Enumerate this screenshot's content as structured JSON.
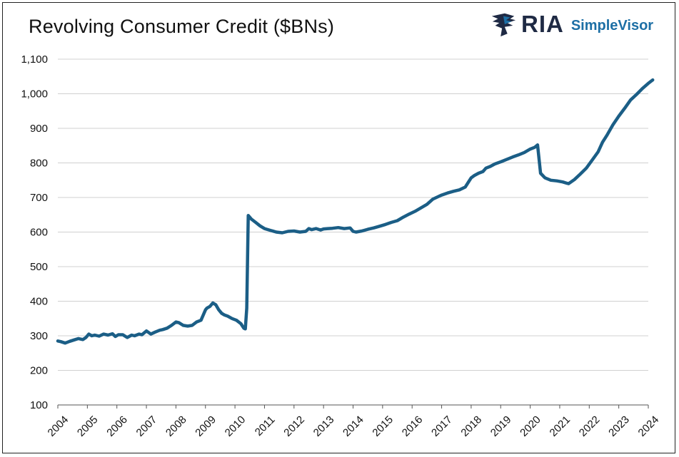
{
  "chart_data": {
    "type": "line",
    "title": "Revolving Consumer Credit ($BNs)",
    "xlabel": "",
    "ylabel": "",
    "ylim": [
      100,
      1100
    ],
    "yticks": [
      100,
      200,
      300,
      400,
      500,
      600,
      700,
      800,
      900,
      1000,
      1100
    ],
    "ytick_labels": [
      "100",
      "200",
      "300",
      "400",
      "500",
      "600",
      "700",
      "800",
      "900",
      "1,000",
      "1,100"
    ],
    "xlim": [
      2004.0,
      2024.0
    ],
    "xticks": [
      2004,
      2005,
      2006,
      2007,
      2008,
      2009,
      2010,
      2011,
      2012,
      2013,
      2014,
      2015,
      2016,
      2017,
      2018,
      2019,
      2020,
      2021,
      2022,
      2023,
      2024
    ],
    "xtick_labels": [
      "2004",
      "2005",
      "2006",
      "2007",
      "2008",
      "2009",
      "2010",
      "2011",
      "2012",
      "2013",
      "2014",
      "2015",
      "2016",
      "2017",
      "2018",
      "2019",
      "2020",
      "2021",
      "2022",
      "2023",
      "2024"
    ],
    "grid": true,
    "legend": "none",
    "series": [
      {
        "color": "#1b5e86",
        "x": [
          2004.0,
          2004.1,
          2004.25,
          2004.4,
          2004.55,
          2004.7,
          2004.85,
          2004.95,
          2005.05,
          2005.15,
          2005.25,
          2005.4,
          2005.55,
          2005.7,
          2005.85,
          2005.95,
          2006.05,
          2006.2,
          2006.35,
          2006.5,
          2006.6,
          2006.75,
          2006.85,
          2007.0,
          2007.15,
          2007.3,
          2007.45,
          2007.55,
          2007.7,
          2007.85,
          2008.0,
          2008.1,
          2008.25,
          2008.4,
          2008.55,
          2008.7,
          2008.85,
          2009.0,
          2009.05,
          2009.15,
          2009.25,
          2009.35,
          2009.45,
          2009.55,
          2009.65,
          2009.75,
          2009.9,
          2010.05,
          2010.2,
          2010.3,
          2010.35,
          2010.4,
          2010.45,
          2010.55,
          2010.7,
          2010.85,
          2011.0,
          2011.2,
          2011.4,
          2011.6,
          2011.8,
          2012.0,
          2012.2,
          2012.4,
          2012.5,
          2012.6,
          2012.75,
          2012.9,
          2013.0,
          2013.15,
          2013.3,
          2013.5,
          2013.7,
          2013.9,
          2014.0,
          2014.1,
          2014.3,
          2014.5,
          2014.7,
          2014.9,
          2015.1,
          2015.3,
          2015.5,
          2015.7,
          2015.9,
          2016.1,
          2016.3,
          2016.5,
          2016.7,
          2016.9,
          2017.0,
          2017.2,
          2017.4,
          2017.6,
          2017.8,
          2018.0,
          2018.1,
          2018.25,
          2018.4,
          2018.5,
          2018.65,
          2018.8,
          2019.0,
          2019.2,
          2019.4,
          2019.6,
          2019.8,
          2020.0,
          2020.15,
          2020.25,
          2020.35,
          2020.5,
          2020.7,
          2020.9,
          2021.1,
          2021.25,
          2021.3,
          2021.5,
          2021.7,
          2021.9,
          2022.1,
          2022.3,
          2022.45,
          2022.6,
          2022.8,
          2023.0,
          2023.2,
          2023.4,
          2023.6,
          2023.8,
          2024.0,
          2024.15
        ],
        "y": [
          285,
          283,
          279,
          284,
          288,
          292,
          289,
          295,
          305,
          300,
          302,
          299,
          305,
          302,
          306,
          298,
          303,
          303,
          295,
          302,
          300,
          305,
          303,
          314,
          305,
          311,
          316,
          318,
          322,
          330,
          340,
          338,
          330,
          328,
          330,
          340,
          345,
          375,
          380,
          385,
          395,
          390,
          375,
          365,
          360,
          357,
          350,
          345,
          335,
          322,
          320,
          380,
          648,
          638,
          628,
          618,
          610,
          605,
          600,
          598,
          602,
          603,
          600,
          602,
          610,
          607,
          610,
          606,
          609,
          610,
          611,
          613,
          610,
          612,
          602,
          600,
          603,
          608,
          612,
          617,
          622,
          628,
          633,
          643,
          652,
          660,
          670,
          680,
          695,
          703,
          707,
          713,
          718,
          722,
          730,
          757,
          763,
          770,
          775,
          785,
          790,
          797,
          803,
          810,
          817,
          823,
          830,
          840,
          845,
          852,
          770,
          757,
          750,
          748,
          745,
          741,
          740,
          752,
          768,
          785,
          808,
          832,
          860,
          880,
          910,
          935,
          958,
          982,
          998,
          1015,
          1030,
          1040
        ]
      }
    ]
  },
  "logo": {
    "brand": "RIA",
    "product": "SimpleVisor",
    "mark_icon": "eagle-icon",
    "brand_color": "#1f2a44",
    "product_color": "#1d6fa5"
  }
}
